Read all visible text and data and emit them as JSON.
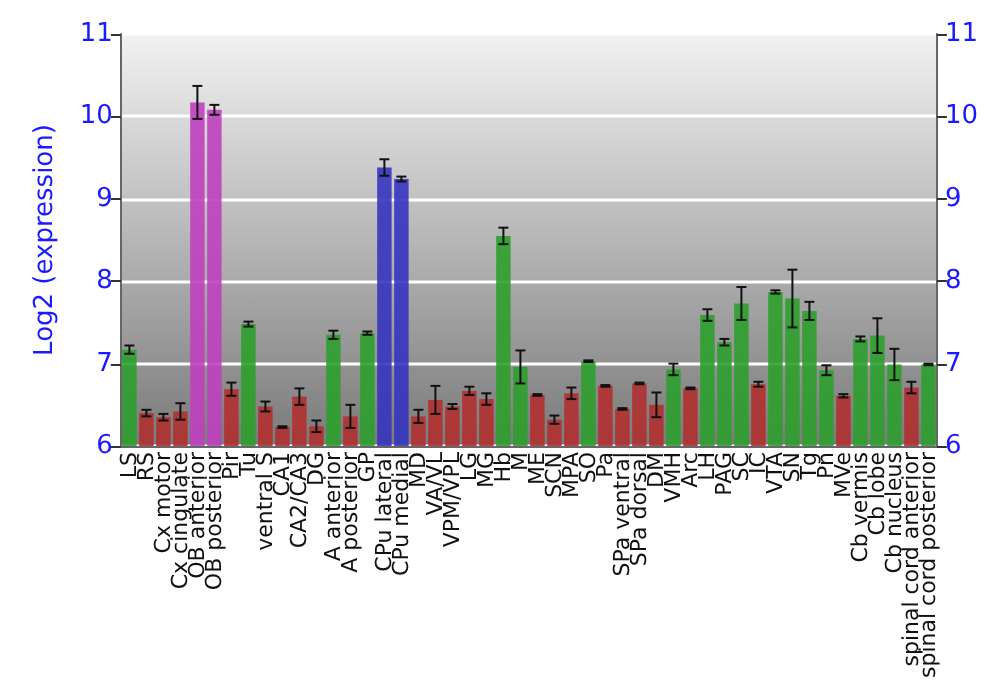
{
  "chart_data": {
    "type": "bar",
    "ylabel": "Log2 (expression)",
    "categories": [
      "LS",
      "RS",
      "Cx motor",
      "Cx cingulate",
      "OB anterior",
      "OB posterior",
      "Pir",
      "Tu",
      "ventral S",
      "CA1",
      "CA2/CA3",
      "DG",
      "A anterior",
      "A posterior",
      "GP",
      "CPu lateral",
      "CPu medial",
      "MD",
      "VA/VL",
      "VPM/VPL",
      "LG",
      "MG",
      "Hb",
      "M",
      "ME",
      "SCN",
      "MPA",
      "SO",
      "Pa",
      "SPa ventral",
      "SPa dorsal",
      "DM",
      "VMH",
      "Arc",
      "LH",
      "PAG",
      "SC",
      "IC",
      "VTA",
      "SN",
      "Tg",
      "Pn",
      "MVe",
      "Cb vermis",
      "Cb lobe",
      "Cb nucleus",
      "spinal cord anterior",
      "spinal cord posterior"
    ],
    "values": [
      7.17,
      6.4,
      6.35,
      6.42,
      10.17,
      10.08,
      6.69,
      7.48,
      6.48,
      6.23,
      6.6,
      6.24,
      7.35,
      6.36,
      7.37,
      9.38,
      9.24,
      6.36,
      6.56,
      6.48,
      6.67,
      6.57,
      8.55,
      6.96,
      6.62,
      6.32,
      6.64,
      7.03,
      6.73,
      6.45,
      6.76,
      6.5,
      6.93,
      6.7,
      7.59,
      7.26,
      7.73,
      6.75,
      7.87,
      7.79,
      7.64,
      6.92,
      6.61,
      7.3,
      7.34,
      6.99,
      6.71,
      6.99
    ],
    "errors": [
      0.05,
      0.04,
      0.04,
      0.1,
      0.2,
      0.06,
      0.08,
      0.03,
      0.06,
      0.01,
      0.1,
      0.07,
      0.05,
      0.14,
      0.02,
      0.1,
      0.03,
      0.08,
      0.17,
      0.03,
      0.05,
      0.07,
      0.1,
      0.2,
      0.01,
      0.05,
      0.07,
      0.01,
      0.01,
      0.01,
      0.01,
      0.15,
      0.07,
      0.01,
      0.07,
      0.04,
      0.2,
      0.03,
      0.02,
      0.35,
      0.11,
      0.06,
      0.02,
      0.03,
      0.21,
      0.19,
      0.07,
      0.01
    ],
    "colors": [
      "#2e9e2e",
      "#b03030",
      "#b03030",
      "#b03030",
      "#c040c0",
      "#c040c0",
      "#b03030",
      "#2e9e2e",
      "#b03030",
      "#b03030",
      "#b03030",
      "#b03030",
      "#2e9e2e",
      "#b03030",
      "#2e9e2e",
      "#3535c0",
      "#3535c0",
      "#b03030",
      "#b03030",
      "#b03030",
      "#b03030",
      "#b03030",
      "#2e9e2e",
      "#2e9e2e",
      "#b03030",
      "#b03030",
      "#b03030",
      "#2e9e2e",
      "#b03030",
      "#b03030",
      "#b03030",
      "#b03030",
      "#2e9e2e",
      "#b03030",
      "#2e9e2e",
      "#2e9e2e",
      "#2e9e2e",
      "#b03030",
      "#2e9e2e",
      "#2e9e2e",
      "#2e9e2e",
      "#2e9e2e",
      "#b03030",
      "#2e9e2e",
      "#2e9e2e",
      "#2e9e2e",
      "#b03030",
      "#2e9e2e"
    ],
    "ylim": [
      6,
      11
    ],
    "yticks": [
      6,
      7,
      8,
      9,
      10,
      11
    ],
    "y2lim": [
      6,
      11
    ],
    "y2ticks": [
      6,
      7,
      8,
      9,
      10,
      11
    ],
    "grid": "y"
  }
}
